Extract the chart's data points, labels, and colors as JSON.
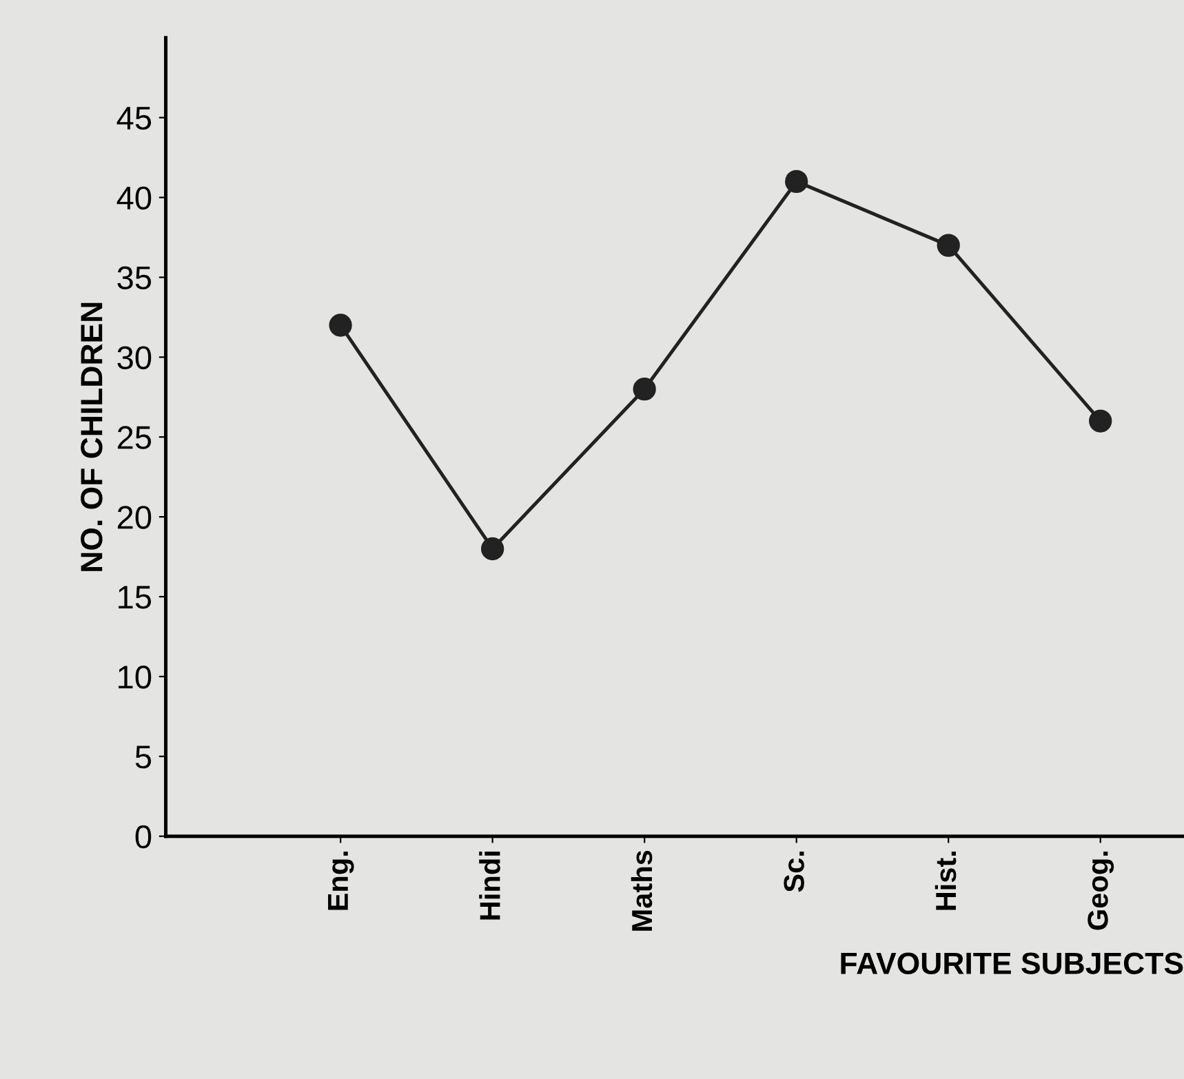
{
  "chart_data": {
    "type": "line",
    "xlabel": "FAVOURITE SUBJECTS",
    "ylabel": "NO. OF CHILDREN",
    "categories": [
      "Eng.",
      "Hindi",
      "Maths",
      "Sc.",
      "Hist.",
      "Geog."
    ],
    "series": [
      {
        "color": "#222222",
        "values": [
          32,
          18,
          28,
          41,
          37,
          26
        ]
      }
    ],
    "ylim": [
      0,
      50
    ],
    "yticks": [
      0,
      5,
      10,
      15,
      20,
      25,
      30,
      35,
      40,
      45
    ],
    "marker": "circle",
    "line_style": "solid",
    "grid": false,
    "legend": false
  }
}
